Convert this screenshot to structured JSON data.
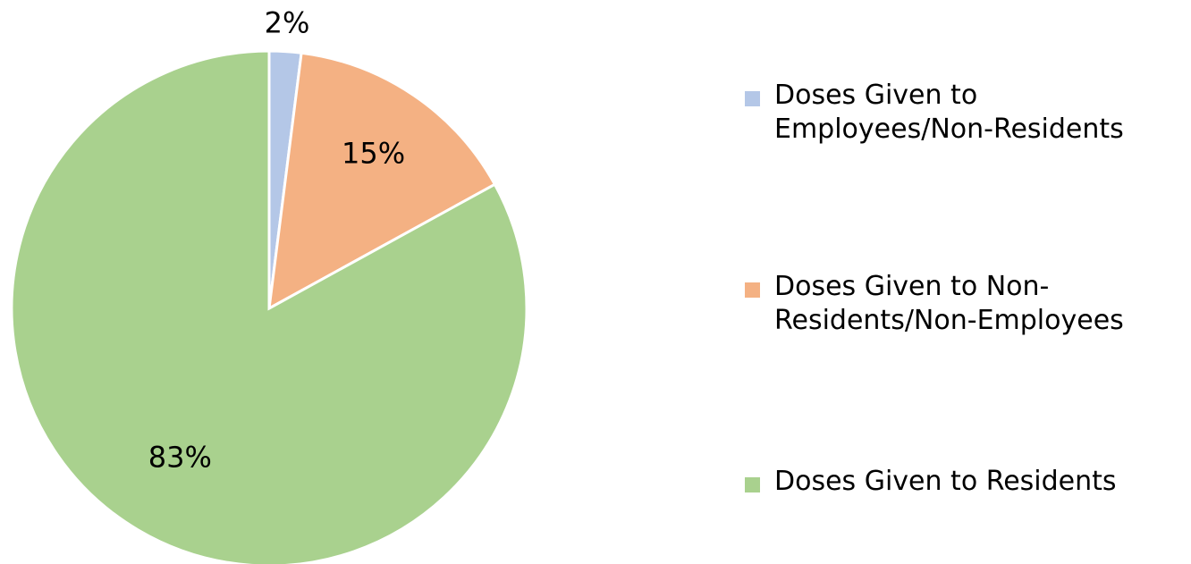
{
  "chart_data": {
    "type": "pie",
    "categories": [
      "Doses Given to Employees/Non-Residents",
      "Doses Given to Non-Residents/Non-Employees",
      "Doses Given to Residents"
    ],
    "values": [
      2,
      15,
      83
    ],
    "value_labels": [
      "2%",
      "15%",
      "83%"
    ],
    "colors": [
      "#b4c7e7",
      "#f4b183",
      "#a9d18e"
    ],
    "legend": "right"
  }
}
